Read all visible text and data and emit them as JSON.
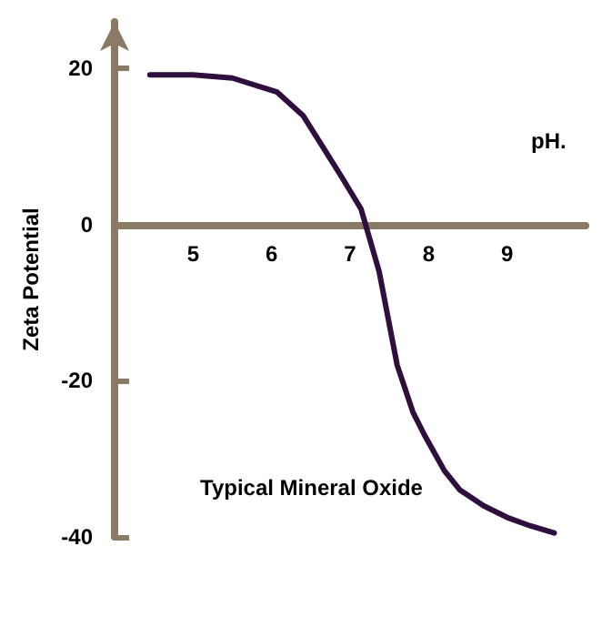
{
  "chart_data": {
    "type": "line",
    "xlabel": "pH.",
    "ylabel": "Zeta Potential",
    "annotations": [
      "Typical Mineral Oxide"
    ],
    "xlim": [
      4,
      10
    ],
    "ylim": [
      -40,
      26
    ],
    "xticks": [
      5,
      6,
      7,
      8,
      9
    ],
    "yticks": [
      -40,
      -20,
      0,
      20
    ],
    "marker": "none",
    "line_style": "solid",
    "series": [
      {
        "color": "#2e0f3e",
        "x": [
          4.45,
          5.0,
          5.5,
          6.07,
          6.4,
          6.65,
          6.9,
          7.14,
          7.37,
          7.6,
          7.8,
          7.95,
          8.2,
          8.4,
          8.7,
          9.0,
          9.3,
          9.6
        ],
        "values": [
          19.2,
          19.2,
          18.8,
          17,
          14,
          10,
          6,
          2,
          -6,
          -18,
          -24,
          -27,
          -31.5,
          -34,
          -36,
          -37.5,
          -38.6,
          -39.5
        ]
      }
    ]
  }
}
